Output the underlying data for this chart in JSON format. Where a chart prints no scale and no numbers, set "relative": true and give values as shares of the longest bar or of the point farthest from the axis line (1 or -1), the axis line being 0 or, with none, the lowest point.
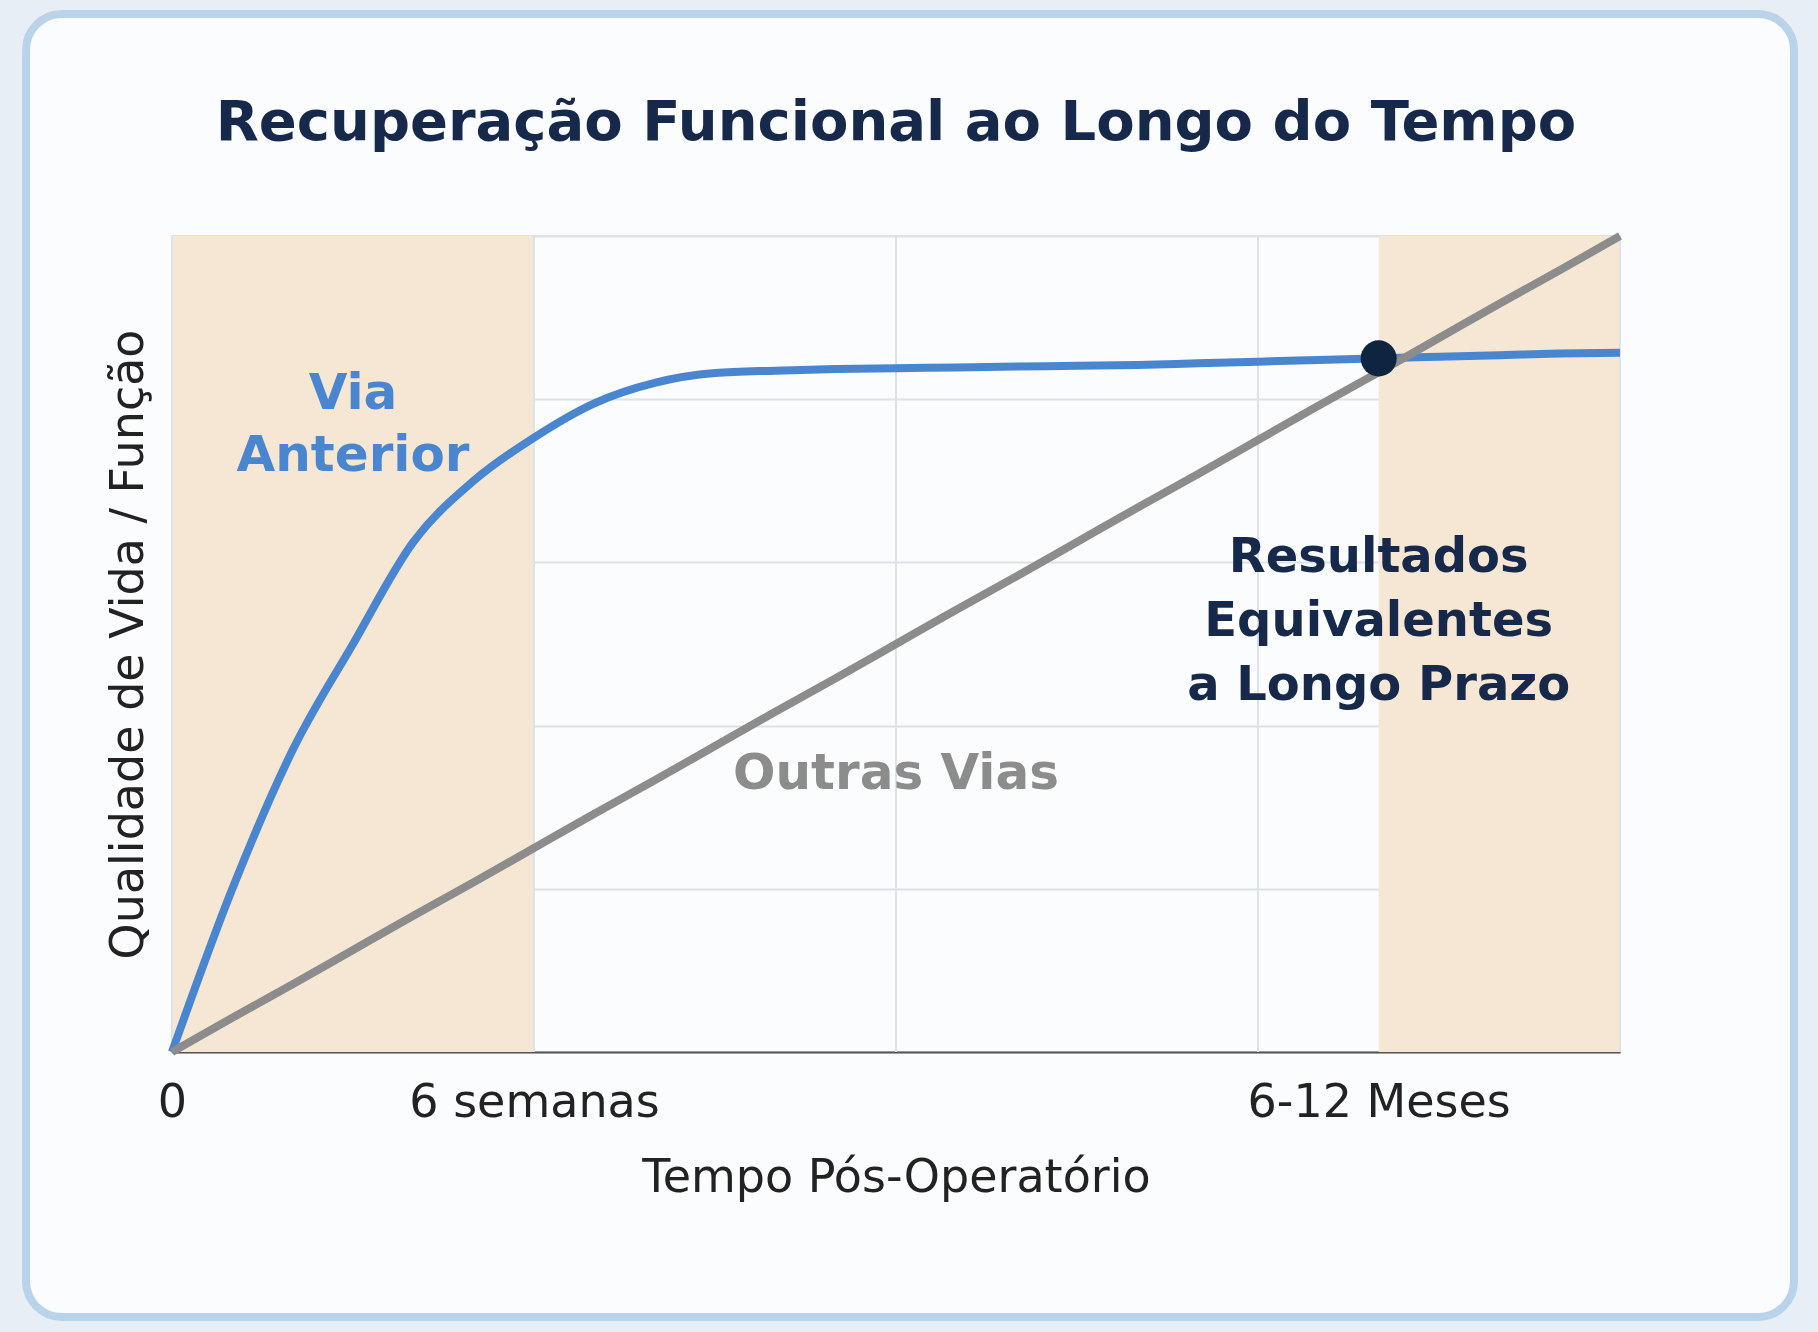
{
  "chart_data": {
    "type": "line",
    "title": "Recuperação Funcional ao Longo do Tempo",
    "xlabel": "Tempo Pós-Operatório",
    "ylabel": "Qualidade de Vida / Função",
    "relative": true,
    "grid": true,
    "line_style": "solid",
    "categories": [
      "0",
      null,
      null,
      null,
      null,
      null,
      "6 semanas",
      null,
      null,
      null,
      null,
      null,
      null,
      null,
      null,
      null,
      null,
      null,
      null,
      null,
      "6-12 Meses",
      null,
      null,
      null,
      null
    ],
    "series": [
      {
        "name": "Via Anterior",
        "color": "#4a86d0",
        "values": [
          0,
          0.2,
          0.37,
          0.5,
          0.625,
          0.7,
          0.753,
          0.795,
          0.82,
          0.832,
          0.835,
          0.837,
          0.838,
          0.839,
          0.84,
          0.841,
          0.842,
          0.844,
          0.846,
          0.848,
          null,
          0.852,
          0.854,
          0.856,
          0.857
        ]
      },
      {
        "name": "Outras Vias",
        "color": "#8c8c8c",
        "values": [
          0,
          0.042,
          0.083,
          0.125,
          0.167,
          0.208,
          0.25,
          0.292,
          0.333,
          0.375,
          0.417,
          0.458,
          0.5,
          0.542,
          0.583,
          0.625,
          0.667,
          0.708,
          0.75,
          0.792,
          0.833,
          0.875,
          0.917,
          0.958,
          1
        ]
      },
      {
        "type": "scatter",
        "color": "#0f2440",
        "values": [
          null,
          null,
          null,
          null,
          null,
          null,
          null,
          null,
          null,
          null,
          null,
          null,
          null,
          null,
          null,
          null,
          null,
          null,
          null,
          null,
          0.85,
          null,
          null,
          null,
          null
        ]
      }
    ],
    "bands": [
      {
        "axis": "x",
        "from": "0",
        "to": "6 semanas",
        "color": "#f6e7d5"
      }
    ],
    "annotations": [
      "Resultados Equivalentes a Longo Prazo"
    ]
  }
}
